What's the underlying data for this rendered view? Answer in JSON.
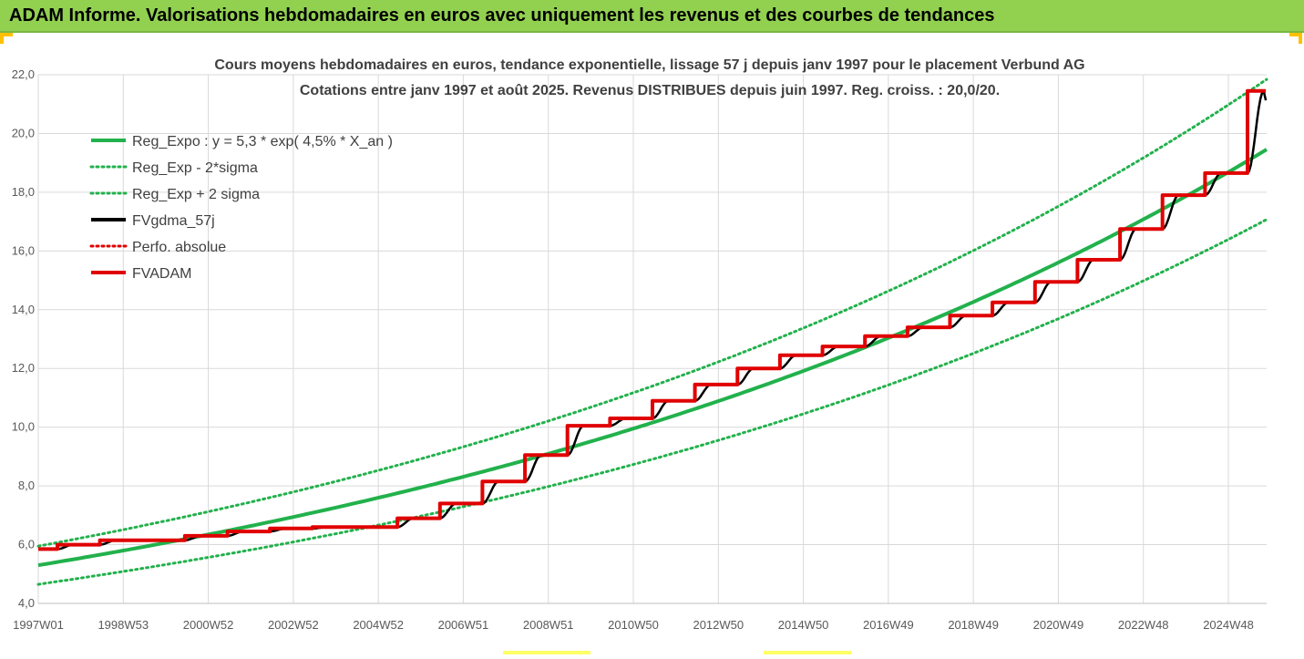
{
  "header": {
    "title": "ADAM Informe. Valorisations hebdomadaires en euros avec uniquement les revenus et des courbes de tendances",
    "background": "#92d050",
    "accent": "#ffc000"
  },
  "chart_data": {
    "type": "line",
    "title_lines": [
      "Cours moyens hebdomadaires en euros, tendance exponentielle, lissage 57 j depuis janv 1997  pour le placement Verbund AG",
      "Cotations entre janv 1997 et août 2025.  Revenus DISTRIBUES depuis juin 1997.  Reg. croiss. : 20,0/20."
    ],
    "xlabel": "",
    "ylabel": "",
    "xlim": [
      1997.0,
      2025.9
    ],
    "ylim": [
      4,
      22
    ],
    "yticks": [
      "4,0",
      "6,0",
      "8,0",
      "10,0",
      "12,0",
      "14,0",
      "16,0",
      "18,0",
      "20,0",
      "22,0"
    ],
    "yticks_values": [
      4,
      6,
      8,
      10,
      12,
      14,
      16,
      18,
      20,
      22
    ],
    "xticks": [
      {
        "label": "1997W01",
        "x": 1997.0
      },
      {
        "label": "1998W53",
        "x": 1999.0
      },
      {
        "label": "2000W52",
        "x": 2001.0
      },
      {
        "label": "2002W52",
        "x": 2003.0
      },
      {
        "label": "2004W52",
        "x": 2005.0
      },
      {
        "label": "2006W51",
        "x": 2007.0
      },
      {
        "label": "2008W51",
        "x": 2009.0
      },
      {
        "label": "2010W50",
        "x": 2011.0
      },
      {
        "label": "2012W50",
        "x": 2013.0
      },
      {
        "label": "2014W50",
        "x": 2015.0
      },
      {
        "label": "2016W49",
        "x": 2017.0
      },
      {
        "label": "2018W49",
        "x": 2019.0
      },
      {
        "label": "2020W49",
        "x": 2021.0
      },
      {
        "label": "2022W48",
        "x": 2023.0
      },
      {
        "label": "2024W48",
        "x": 2025.0
      }
    ],
    "grid": true,
    "legend_position": "top-left",
    "series": [
      {
        "name": "Reg_Expo : y = 5,3 * exp( 4,5% *  X_an )",
        "color": "#22b14c",
        "style": "solid",
        "kind": "expo",
        "a": 5.3,
        "rate": 0.045
      },
      {
        "name": "Reg_Exp - 2*sigma",
        "color": "#22b14c",
        "style": "dotted",
        "kind": "expo",
        "a": 4.65,
        "rate": 0.045
      },
      {
        "name": "Reg_Exp + 2 sigma",
        "color": "#22b14c",
        "style": "dotted",
        "kind": "expo",
        "a": 5.95,
        "rate": 0.045
      },
      {
        "name": "FVgdma_57j",
        "color": "#000000",
        "style": "solid",
        "kind": "smooth"
      },
      {
        "name": "Perfo. absolue",
        "color": "#e00000",
        "style": "dotted",
        "kind": "none"
      },
      {
        "name": "FVADAM",
        "color": "#e00000",
        "style": "solid",
        "kind": "step",
        "start": 5.85,
        "steps": [
          {
            "x": 1997.45,
            "y": 6.0
          },
          {
            "x": 1998.45,
            "y": 6.15
          },
          {
            "x": 2000.45,
            "y": 6.3
          },
          {
            "x": 2001.45,
            "y": 6.45
          },
          {
            "x": 2002.45,
            "y": 6.55
          },
          {
            "x": 2003.45,
            "y": 6.6
          },
          {
            "x": 2004.45,
            "y": 6.6
          },
          {
            "x": 2005.45,
            "y": 6.9
          },
          {
            "x": 2006.45,
            "y": 7.4
          },
          {
            "x": 2007.45,
            "y": 8.15
          },
          {
            "x": 2008.45,
            "y": 9.05
          },
          {
            "x": 2009.45,
            "y": 10.05
          },
          {
            "x": 2010.45,
            "y": 10.3
          },
          {
            "x": 2011.45,
            "y": 10.9
          },
          {
            "x": 2012.45,
            "y": 11.45
          },
          {
            "x": 2013.45,
            "y": 12.0
          },
          {
            "x": 2014.45,
            "y": 12.45
          },
          {
            "x": 2015.45,
            "y": 12.75
          },
          {
            "x": 2016.45,
            "y": 13.1
          },
          {
            "x": 2017.45,
            "y": 13.4
          },
          {
            "x": 2018.45,
            "y": 13.8
          },
          {
            "x": 2019.45,
            "y": 14.25
          },
          {
            "x": 2020.45,
            "y": 14.95
          },
          {
            "x": 2021.45,
            "y": 15.7
          },
          {
            "x": 2022.45,
            "y": 16.75
          },
          {
            "x": 2023.45,
            "y": 17.9
          },
          {
            "x": 2024.45,
            "y": 18.65
          },
          {
            "x": 2025.45,
            "y": 21.45
          }
        ],
        "end_x": 2025.88
      }
    ]
  }
}
